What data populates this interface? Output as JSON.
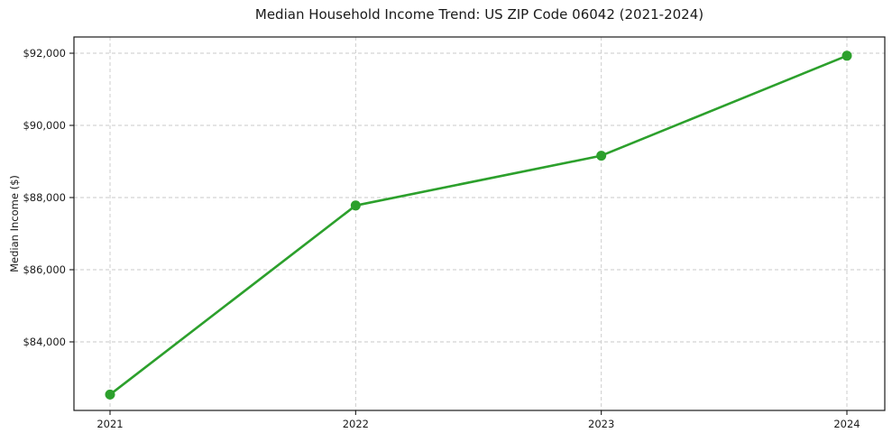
{
  "chart_data": {
    "type": "line",
    "title": "Median Household Income Trend: US ZIP Code 06042 (2021-2024)",
    "xlabel": "",
    "ylabel": "Median Income ($)",
    "categories": [
      "2021",
      "2022",
      "2023",
      "2024"
    ],
    "series": [
      {
        "name": "Median Household Income",
        "values": [
          82540,
          87780,
          89160,
          91930
        ]
      }
    ],
    "y_ticks": [
      {
        "value": 84000,
        "label": "$84,000"
      },
      {
        "value": 86000,
        "label": "$86,000"
      },
      {
        "value": 88000,
        "label": "$88,000"
      },
      {
        "value": 90000,
        "label": "$90,000"
      },
      {
        "value": 92000,
        "label": "$92,000"
      }
    ],
    "ylim": [
      82100,
      92450
    ],
    "grid": "dashed",
    "legend": "none",
    "colors": {
      "line": "#2ca02c",
      "marker": "#2ca02c",
      "grid": "#c9c9c9",
      "axis": "#1a1a1a",
      "text": "#1a1a1a",
      "background": "#ffffff"
    }
  }
}
